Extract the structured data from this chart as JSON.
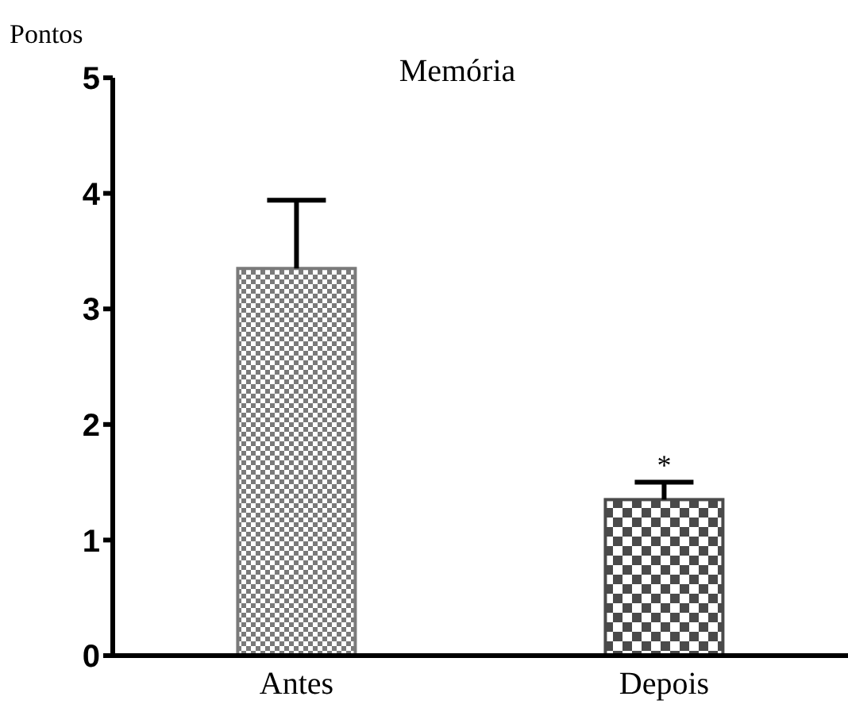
{
  "chart_data": {
    "type": "bar",
    "title": "Memória",
    "ylabel": "Pontos",
    "categories": [
      "Antes",
      "Depois"
    ],
    "values": [
      3.35,
      1.35
    ],
    "errors": [
      [
        3.35,
        3.94
      ],
      [
        1.35,
        1.5
      ]
    ],
    "colors": [
      "#7a7a7a",
      "#4a4a4a"
    ],
    "ylim": [
      0,
      5
    ],
    "yticks": [
      0,
      1,
      2,
      3,
      4,
      5
    ],
    "grid": false,
    "legend": false,
    "annotations": [
      {
        "text": "*",
        "x": "Depois",
        "y": 1.5
      }
    ]
  }
}
